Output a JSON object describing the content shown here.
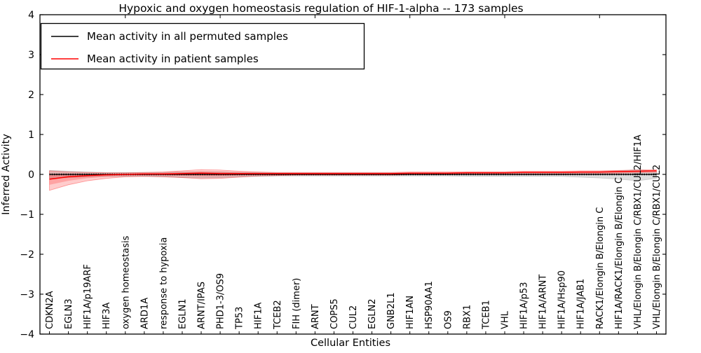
{
  "chart_data": {
    "type": "line",
    "title": "Hypoxic and oxygen homeostasis regulation of HIF-1-alpha -- 173 samples",
    "xlabel": "Cellular Entities",
    "ylabel": "Inferred Activity",
    "ylim": [
      -4,
      4
    ],
    "ytick_values": [
      4,
      3,
      2,
      1,
      0,
      -1,
      -2,
      -3,
      -4
    ],
    "ytick_labels": [
      "4",
      "3",
      "2",
      "1",
      "0",
      "−1",
      "−2",
      "−3",
      "−4"
    ],
    "grid": false,
    "legend_position": "upper left",
    "categories": [
      "CDKN2A",
      "EGLN3",
      "HIF1A/p19ARF",
      "HIF3A",
      "oxygen homeostasis",
      "ARD1A",
      "response to hypoxia",
      "EGLN1",
      "ARNT/IPAS",
      "PHD1-3/OS9",
      "TP53",
      "HIF1A",
      "TCEB2",
      "FIH (dimer)",
      "ARNT",
      "COPS5",
      "CUL2",
      "EGLN2",
      "GNB2L1",
      "HIF1AN",
      "HSP90AA1",
      "OS9",
      "RBX1",
      "TCEB1",
      "VHL",
      "HIF1A/p53",
      "HIF1A/ARNT",
      "HIF1A/Hsp90",
      "HIF1A/JAB1",
      "RACK1/Elongin B/Elongin C",
      "HIF1A/RACK1/Elongin B/Elongin C",
      "VHL/Elongin B/Elongin C/RBX1/CUL2/HIF1A",
      "VHL/Elongin B/Elongin C/RBX1/CUL2"
    ],
    "series": [
      {
        "name": "Mean activity in all permuted samples",
        "color": "#000000",
        "style": "solid-with-dense-dot-markers",
        "values": [
          0,
          0,
          0,
          0,
          0,
          0,
          0,
          0,
          0,
          0,
          0,
          0,
          0,
          0,
          0,
          0,
          0,
          0,
          0,
          0,
          0,
          0,
          0,
          0,
          0,
          0,
          0,
          0,
          0,
          0,
          0,
          0,
          0
        ]
      },
      {
        "name": "Mean activity in patient samples",
        "color": "#ff0000",
        "style": "solid",
        "values": [
          -0.12,
          -0.06,
          -0.03,
          -0.01,
          0,
          0.01,
          0.01,
          0.02,
          0.03,
          0.02,
          0.02,
          0.02,
          0.02,
          0.02,
          0.02,
          0.02,
          0.02,
          0.02,
          0.02,
          0.03,
          0.03,
          0.03,
          0.04,
          0.04,
          0.04,
          0.05,
          0.05,
          0.05,
          0.06,
          0.06,
          0.07,
          0.08,
          0.09
        ]
      }
    ],
    "bands": [
      {
        "name": "permuted-samples-std-band",
        "color": "#777777",
        "fill_opacity": 0.25,
        "top": [
          0.1,
          0.08,
          0.06,
          0.05,
          0.05,
          0.05,
          0.05,
          0.06,
          0.06,
          0.06,
          0.05,
          0.05,
          0.04,
          0.04,
          0.04,
          0.04,
          0.04,
          0.04,
          0.04,
          0.04,
          0.04,
          0.04,
          0.05,
          0.05,
          0.05,
          0.05,
          0.05,
          0.05,
          0.06,
          0.07,
          0.09,
          0.12,
          0.08
        ],
        "bottom": [
          -0.1,
          -0.08,
          -0.06,
          -0.05,
          -0.05,
          -0.05,
          -0.06,
          -0.08,
          -0.09,
          -0.08,
          -0.06,
          -0.05,
          -0.04,
          -0.04,
          -0.04,
          -0.04,
          -0.04,
          -0.04,
          -0.04,
          -0.04,
          -0.04,
          -0.04,
          -0.05,
          -0.05,
          -0.05,
          -0.05,
          -0.05,
          -0.05,
          -0.07,
          -0.09,
          -0.12,
          -0.16,
          -0.1
        ]
      },
      {
        "name": "patient-samples-std-band",
        "color": "#ff0000",
        "fill_opacity": 0.2,
        "top": [
          0.09,
          0.06,
          0.05,
          0.04,
          0.04,
          0.05,
          0.06,
          0.09,
          0.12,
          0.11,
          0.08,
          0.06,
          0.05,
          0.05,
          0.05,
          0.05,
          0.05,
          0.05,
          0.05,
          0.06,
          0.06,
          0.06,
          0.07,
          0.07,
          0.07,
          0.08,
          0.08,
          0.08,
          0.09,
          0.09,
          0.1,
          0.11,
          0.12
        ],
        "bottom": [
          -0.4,
          -0.26,
          -0.16,
          -0.1,
          -0.06,
          -0.05,
          -0.06,
          -0.08,
          -0.11,
          -0.1,
          -0.07,
          -0.04,
          -0.03,
          -0.02,
          -0.02,
          -0.02,
          -0.02,
          -0.02,
          -0.02,
          -0.01,
          -0.01,
          -0.01,
          0,
          0,
          0,
          0.01,
          0.01,
          0.01,
          0.02,
          0.02,
          0.03,
          0.04,
          0.05
        ]
      }
    ],
    "top_tick_indices": [
      4,
      9,
      14,
      19,
      24,
      29
    ]
  }
}
